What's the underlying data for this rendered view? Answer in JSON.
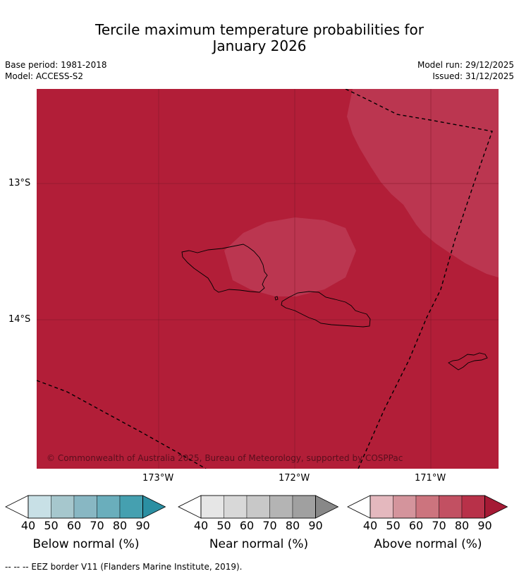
{
  "title_line1": "Tercile maximum temperature probabilities for",
  "title_line2": "January 2026",
  "meta_left": {
    "base_period": "Base period: 1981-2018",
    "model": "Model: ACCESS-S2"
  },
  "meta_right": {
    "model_run": "Model run: 29/12/2025",
    "issued": "Issued: 31/12/2025"
  },
  "map": {
    "lat_labels": [
      "13°S",
      "14°S"
    ],
    "lon_labels": [
      "173°W",
      "172°W",
      "171°W"
    ],
    "copyright": "© Commonwealth of Australia 2025, Bureau of Meteorology, supported by COSPPac",
    "background_color": "#b21e38",
    "region_color": "#bb3650",
    "eez_style": "dashed black"
  },
  "colorbars": [
    {
      "caption": "Below normal (%)",
      "ticks": [
        "40",
        "50",
        "60",
        "70",
        "80",
        "90"
      ],
      "colors": [
        "#ffffff",
        "#c8e0e6",
        "#a6c7cd",
        "#88b7c3",
        "#6aaebc",
        "#45a0b0",
        "#2b8fa2"
      ]
    },
    {
      "caption": "Near normal (%)",
      "ticks": [
        "40",
        "50",
        "60",
        "70",
        "80",
        "90"
      ],
      "colors": [
        "#ffffff",
        "#e6e6e6",
        "#d8d8d8",
        "#c8c8c8",
        "#b4b4b4",
        "#a0a0a0",
        "#888888"
      ]
    },
    {
      "caption": "Above normal (%)",
      "ticks": [
        "40",
        "50",
        "60",
        "70",
        "80",
        "90"
      ],
      "colors": [
        "#ffffff",
        "#e4b8be",
        "#d4949c",
        "#cc747e",
        "#c25062",
        "#b83149",
        "#a51a35"
      ]
    }
  ],
  "footnote": "--  --  -- EEZ border V11 (Flanders Marine Institute, 2019)."
}
